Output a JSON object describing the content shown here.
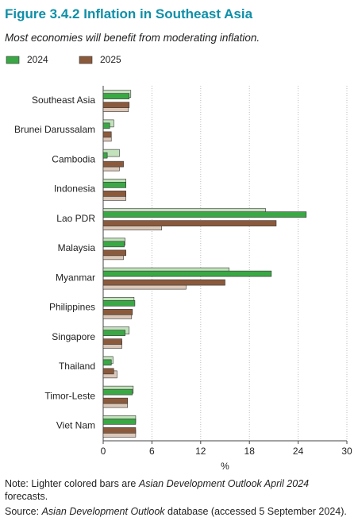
{
  "chart_data": {
    "type": "bar",
    "orientation": "horizontal",
    "figure_label": "Figure 3.4.2",
    "title": "Inflation in Southeast Asia",
    "subtitle": "Most economies will benefit from moderating inflation.",
    "categories": [
      "Southeast Asia",
      "Brunei Darussalam",
      "Cambodia",
      "Indonesia",
      "Lao PDR",
      "Malaysia",
      "Myanmar",
      "Philippines",
      "Singapore",
      "Thailand",
      "Timor-Leste",
      "Viet Nam"
    ],
    "series": [
      {
        "name": "2024",
        "color": "#3aa845",
        "light_color": "#c2e2bb",
        "values": [
          3.2,
          0.8,
          0.5,
          2.8,
          25.0,
          2.6,
          20.7,
          3.9,
          2.7,
          1.0,
          3.6,
          4.0
        ],
        "april_values": [
          3.4,
          1.3,
          2.0,
          2.8,
          20.0,
          2.7,
          15.5,
          3.8,
          3.2,
          1.2,
          3.7,
          4.0
        ]
      },
      {
        "name": "2025",
        "color": "#8b5a3c",
        "light_color": "#dcc8b9",
        "values": [
          3.2,
          1.0,
          2.5,
          2.8,
          21.3,
          2.8,
          15.0,
          3.6,
          2.3,
          1.3,
          3.0,
          4.0
        ],
        "april_values": [
          3.1,
          1.0,
          2.0,
          2.8,
          7.2,
          2.5,
          10.2,
          3.5,
          2.3,
          1.7,
          3.0,
          4.0
        ]
      }
    ],
    "xlim": [
      0,
      30
    ],
    "xticks": [
      0,
      6,
      12,
      18,
      24,
      30
    ],
    "x_label": "%",
    "grid": true,
    "note": [
      "Note: Lighter colored bars are",
      "Asian Development Outlook April 2024",
      "forecasts."
    ],
    "source": [
      "Source:",
      "Asian Development Outlook",
      "database (accessed 5 September 2024)."
    ]
  }
}
